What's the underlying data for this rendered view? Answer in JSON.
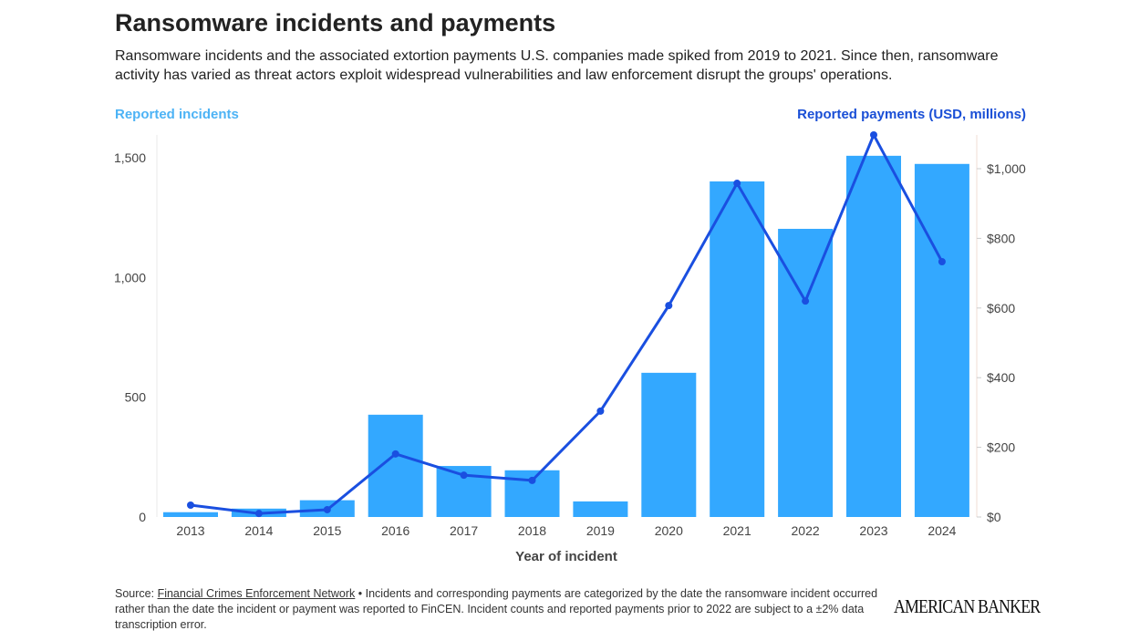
{
  "title": "Ransomware incidents and payments",
  "subtitle": "Ransomware incidents and the associated extortion payments U.S. companies made spiked from 2019 to 2021. Since then, ransomware activity has varied as threat actors exploit widespread vulnerabilities and law enforcement disrupt the groups' operations.",
  "footer": {
    "source_prefix": "Source: ",
    "source_link": "Financial Crimes Enforcement Network",
    "note": " • Incidents and corresponding payments are categorized by the date the ransomware incident occurred rather than the date the incident or payment was reported to FinCEN. Incident counts and reported payments prior to 2022 are subject to a ±2% data transcription error.",
    "logo": "AMERICAN BANKER"
  },
  "chart_data": {
    "type": "bar+line",
    "xlabel": "Year of incident",
    "ylabel_left": "Reported incidents",
    "ylabel_right": "Reported payments (USD, millions)",
    "categories": [
      "2013",
      "2014",
      "2015",
      "2016",
      "2017",
      "2018",
      "2019",
      "2020",
      "2021",
      "2022",
      "2023",
      "2024"
    ],
    "series": [
      {
        "name": "Reported incidents",
        "type": "bar",
        "axis": "left",
        "color": "#33a8ff",
        "values": [
          20,
          35,
          70,
          427,
          213,
          195,
          65,
          602,
          1401,
          1203,
          1508,
          1474
        ]
      },
      {
        "name": "Reported payments (USD, millions)",
        "type": "line",
        "axis": "right",
        "color": "#1a4fe0",
        "values": [
          34,
          10,
          21,
          181,
          120,
          105,
          304,
          607,
          958,
          620,
          1097,
          733
        ]
      }
    ],
    "left_ticks": [
      {
        "v": 0,
        "label": "0"
      },
      {
        "v": 500,
        "label": "500"
      },
      {
        "v": 1000,
        "label": "1,000"
      },
      {
        "v": 1500,
        "label": "1,500"
      }
    ],
    "right_ticks": [
      {
        "v": 0,
        "label": "$0"
      },
      {
        "v": 200,
        "label": "$200"
      },
      {
        "v": 400,
        "label": "$400"
      },
      {
        "v": 600,
        "label": "$600"
      },
      {
        "v": 800,
        "label": "$800"
      },
      {
        "v": 1000,
        "label": "$1,000"
      }
    ],
    "ylim_left": [
      0,
      1600
    ],
    "ylim_right": [
      0,
      1100
    ],
    "grid": false
  }
}
